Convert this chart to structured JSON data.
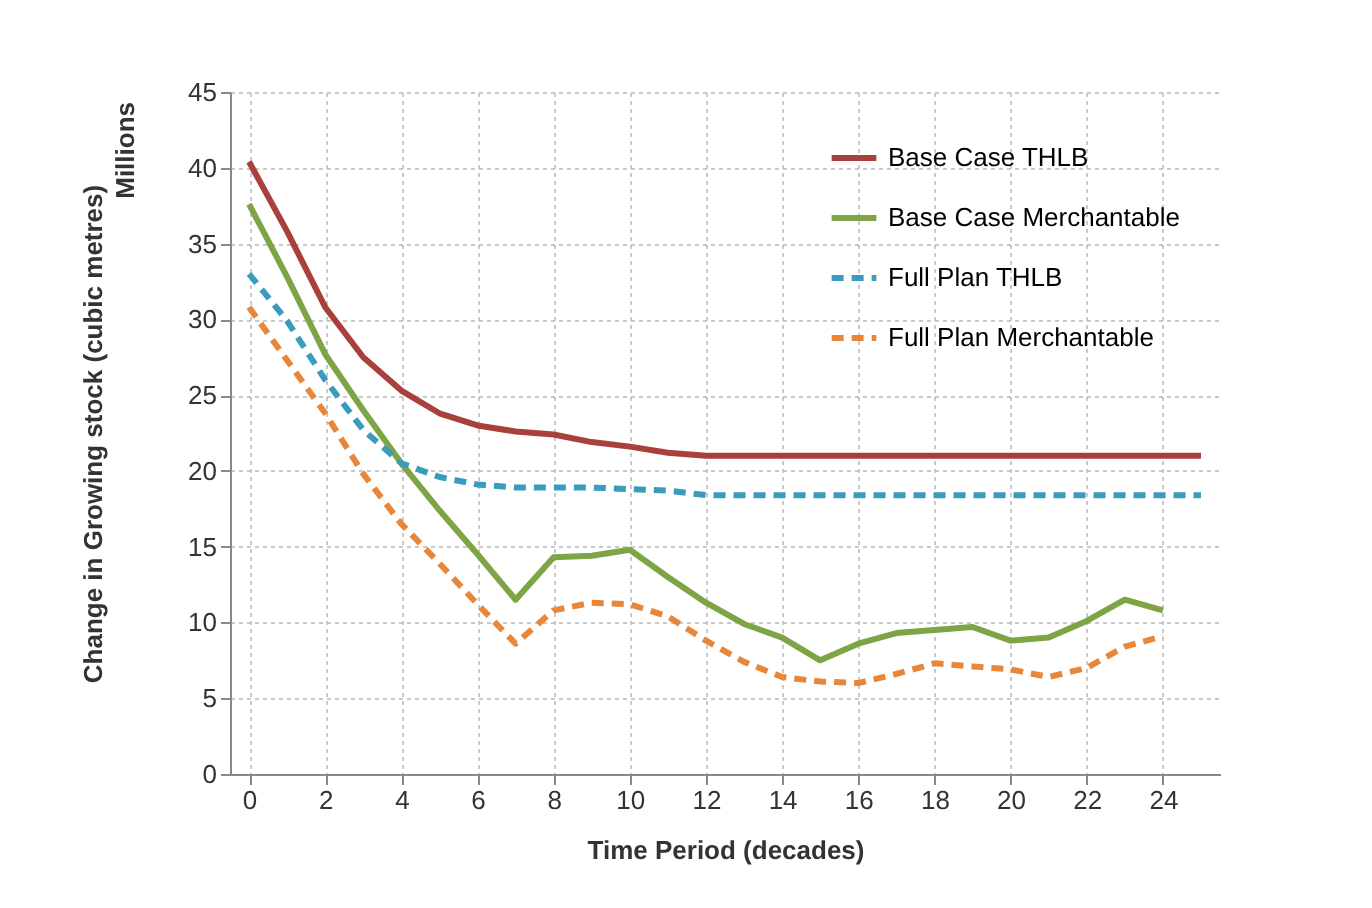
{
  "chart_data": {
    "type": "line",
    "xlabel": "Time Period (decades)",
    "ylabel": "Change in Growing stock (cubic metres)",
    "annotations": [
      "Millions"
    ],
    "x": [
      0,
      1,
      2,
      3,
      4,
      5,
      6,
      7,
      8,
      9,
      10,
      11,
      12,
      13,
      14,
      15,
      16,
      17,
      18,
      19,
      20,
      21,
      22,
      23,
      24,
      25
    ],
    "xlim": [
      -0.5,
      25.5
    ],
    "xticks": [
      0,
      2,
      4,
      6,
      8,
      10,
      12,
      14,
      16,
      18,
      20,
      22,
      24
    ],
    "ylim": [
      0,
      45
    ],
    "yticks": [
      0,
      5,
      10,
      15,
      20,
      25,
      30,
      35,
      40,
      45
    ],
    "grid": true,
    "legend": "top right",
    "marker": "none",
    "series": [
      {
        "name": "Base Case THLB",
        "color": "#a9403b",
        "line_style": "solid",
        "values": [
          40.4,
          35.8,
          30.8,
          27.5,
          25.3,
          23.8,
          23.0,
          22.6,
          22.4,
          21.9,
          21.6,
          21.2,
          21.0,
          21.0,
          21.0,
          21.0,
          21.0,
          21.0,
          21.0,
          21.0,
          21.0,
          21.0,
          21.0,
          21.0,
          21.0,
          21.0
        ]
      },
      {
        "name": "Base Case Merchantable",
        "color": "#7ea446",
        "line_style": "solid",
        "values": [
          37.6,
          32.8,
          27.7,
          24.0,
          20.5,
          17.4,
          14.5,
          11.5,
          14.3,
          14.4,
          14.8,
          13.0,
          11.3,
          9.9,
          9.0,
          7.5,
          8.6,
          9.3,
          9.5,
          9.7,
          8.8,
          9.0,
          10.1,
          11.5,
          10.8,
          null
        ]
      },
      {
        "name": "Full Plan THLB",
        "color": "#3b9bbd",
        "line_style": "dashed",
        "values": [
          33.0,
          29.9,
          26.0,
          22.7,
          20.5,
          19.6,
          19.1,
          18.9,
          18.9,
          18.9,
          18.8,
          18.7,
          18.4,
          18.4,
          18.4,
          18.4,
          18.4,
          18.4,
          18.4,
          18.4,
          18.4,
          18.4,
          18.4,
          18.4,
          18.4,
          18.4
        ]
      },
      {
        "name": "Full Plan Merchantable",
        "color": "#e8873a",
        "line_style": "dashed",
        "values": [
          30.8,
          27.3,
          23.8,
          19.8,
          16.5,
          13.9,
          11.2,
          8.6,
          10.8,
          11.3,
          11.2,
          10.4,
          8.8,
          7.4,
          6.4,
          6.1,
          6.0,
          6.6,
          7.3,
          7.1,
          6.9,
          6.4,
          7.0,
          8.4,
          9.1,
          null
        ]
      }
    ]
  }
}
